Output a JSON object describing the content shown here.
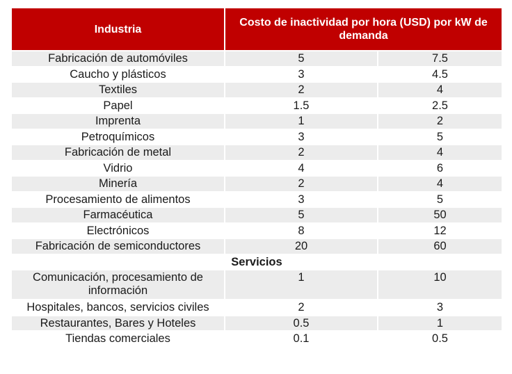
{
  "table": {
    "headers": [
      "Industria",
      "Costo de inactividad por hora (USD) por kW de demanda"
    ],
    "industries": [
      {
        "name": "Fabricación de automóviles",
        "low": "5",
        "high": "7.5"
      },
      {
        "name": "Caucho y plásticos",
        "low": "3",
        "high": "4.5"
      },
      {
        "name": "Textiles",
        "low": "2",
        "high": "4"
      },
      {
        "name": "Papel",
        "low": "1.5",
        "high": "2.5"
      },
      {
        "name": "Imprenta",
        "low": "1",
        "high": "2"
      },
      {
        "name": "Petroquímicos",
        "low": "3",
        "high": "5"
      },
      {
        "name": "Fabricación de metal",
        "low": "2",
        "high": "4"
      },
      {
        "name": "Vidrio",
        "low": "4",
        "high": "6"
      },
      {
        "name": "Minería",
        "low": "2",
        "high": "4"
      },
      {
        "name": "Procesamiento de alimentos",
        "low": "3",
        "high": "5"
      },
      {
        "name": "Farmacéutica",
        "low": "5",
        "high": "50"
      },
      {
        "name": "Electrónicos",
        "low": "8",
        "high": "12"
      },
      {
        "name": "Fabricación de semiconductores",
        "low": "20",
        "high": "60"
      }
    ],
    "section_label": "Servicios",
    "services": [
      {
        "name": "Comunicación, procesamiento de información",
        "low": "1",
        "high": "10"
      },
      {
        "name": "Hospitales, bancos, servicios civiles",
        "low": "2",
        "high": "3"
      },
      {
        "name": "Restaurantes, Bares y Hoteles",
        "low": "0.5",
        "high": "1"
      },
      {
        "name": "Tiendas comerciales",
        "low": "0.1",
        "high": "0.5"
      }
    ],
    "colors": {
      "header_bg": "#c00000",
      "header_text": "#ffffff",
      "row_shade": "#ececec",
      "row_plain": "#ffffff"
    }
  }
}
